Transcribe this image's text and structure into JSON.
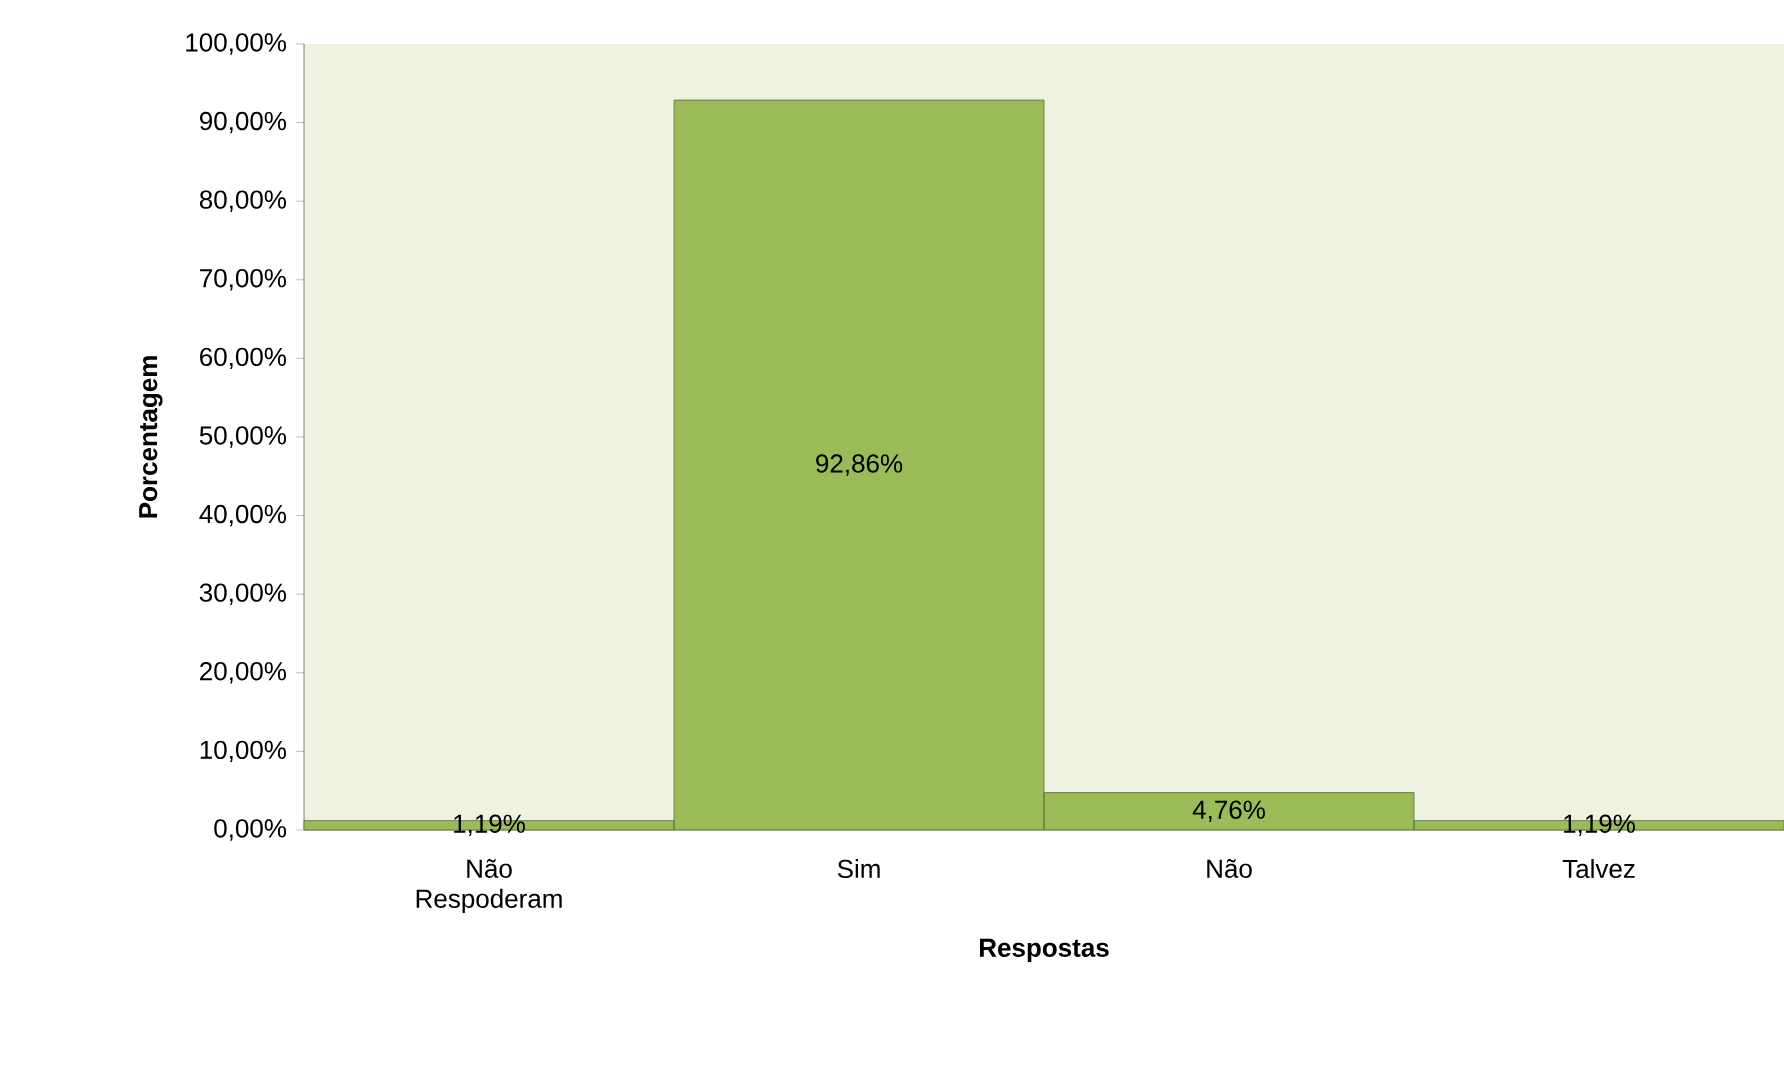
{
  "chart_data": {
    "type": "bar",
    "xlabel": "Respostas",
    "ylabel": "Porcentagem",
    "categories": [
      "Não Respoderam",
      "Sim",
      "Não",
      "Talvez"
    ],
    "values": [
      1.19,
      92.86,
      4.76,
      1.19
    ],
    "value_labels": [
      "1,19%",
      "92,86%",
      "4,76%",
      "1,19%"
    ],
    "color": "#9bbb59",
    "ylim": [
      0,
      100
    ],
    "yticks": [
      {
        "value": 0,
        "label": "0,00%"
      },
      {
        "value": 10,
        "label": "10,00%"
      },
      {
        "value": 20,
        "label": "20,00%"
      },
      {
        "value": 30,
        "label": "30,00%"
      },
      {
        "value": 40,
        "label": "40,00%"
      },
      {
        "value": 50,
        "label": "50,00%"
      },
      {
        "value": 60,
        "label": "60,00%"
      },
      {
        "value": 70,
        "label": "70,00%"
      },
      {
        "value": 80,
        "label": "80,00%"
      },
      {
        "value": 90,
        "label": "90,00%"
      },
      {
        "value": 100,
        "label": "100,00%"
      }
    ],
    "grid": false
  }
}
